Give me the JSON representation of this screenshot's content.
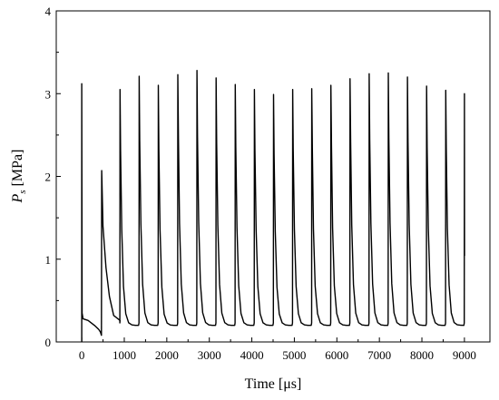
{
  "chart_data": {
    "type": "line",
    "title": "",
    "xlabel": "Time [μs]",
    "ylabel_main": "P",
    "ylabel_sub": "s",
    "ylabel_unit": " [MPa]",
    "xlim": [
      -600,
      9600
    ],
    "ylim": [
      0,
      4
    ],
    "x_ticks": [
      0,
      1000,
      2000,
      3000,
      4000,
      5000,
      6000,
      7000,
      8000,
      9000
    ],
    "y_ticks": [
      0,
      1,
      2,
      3,
      4
    ],
    "grid": false,
    "legend": "none",
    "line_color": "#000000",
    "series": [
      {
        "initial_pulse": {
          "t": 0,
          "peak": 3.12,
          "base": 0.28
        },
        "second_pulse": {
          "t": 470,
          "peak": 2.07,
          "base_before": 0.08
        },
        "pulses": [
          {
            "t": 900,
            "peak": 3.05
          },
          {
            "t": 1350,
            "peak": 3.21
          },
          {
            "t": 1800,
            "peak": 3.1
          },
          {
            "t": 2260,
            "peak": 3.23
          },
          {
            "t": 2710,
            "peak": 3.28
          },
          {
            "t": 3160,
            "peak": 3.19
          },
          {
            "t": 3610,
            "peak": 3.11
          },
          {
            "t": 4060,
            "peak": 3.05
          },
          {
            "t": 4510,
            "peak": 2.99
          },
          {
            "t": 4960,
            "peak": 3.05
          },
          {
            "t": 5410,
            "peak": 3.06
          },
          {
            "t": 5860,
            "peak": 3.1
          },
          {
            "t": 6310,
            "peak": 3.18
          },
          {
            "t": 6760,
            "peak": 3.24
          },
          {
            "t": 7210,
            "peak": 3.25
          },
          {
            "t": 7660,
            "peak": 3.2
          },
          {
            "t": 8110,
            "peak": 3.09
          },
          {
            "t": 8560,
            "peak": 3.04
          },
          {
            "t": 9000,
            "peak": 3.0,
            "end_value": 1.04
          }
        ],
        "trough": 0.2
      }
    ]
  }
}
